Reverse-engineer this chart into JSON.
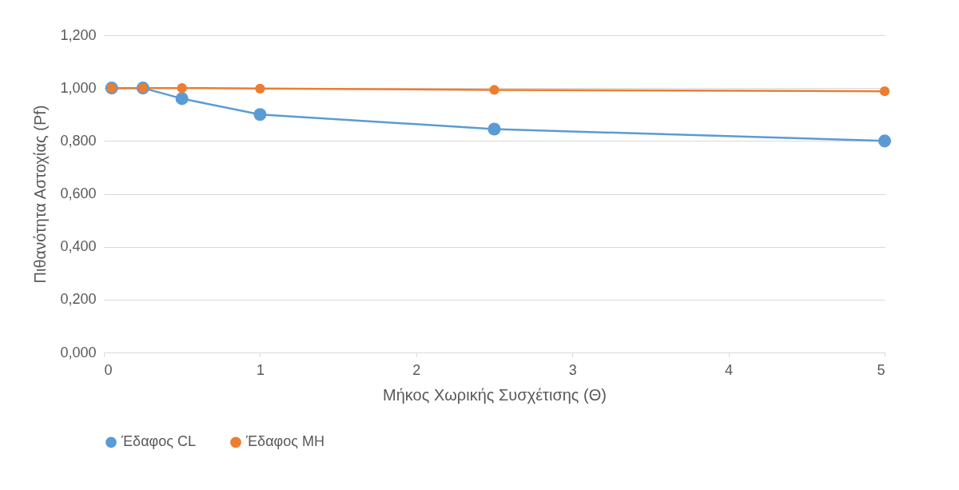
{
  "chart_data": {
    "type": "line",
    "xlabel": "Μήκος Χωρικής Συσχέτισης (Θ)",
    "ylabel": "Πιθανότητα Αστοχίας (Pf)",
    "x": [
      0.05,
      0.25,
      0.5,
      1,
      2.5,
      5
    ],
    "series": [
      {
        "name": "Έδαφος CL",
        "color": "#5b9bd5",
        "values": [
          1.0,
          1.0,
          0.96,
          0.9,
          0.845,
          0.8
        ]
      },
      {
        "name": "Έδαφος MH",
        "color": "#ed7d31",
        "values": [
          1.0,
          1.0,
          1.0,
          0.998,
          0.993,
          0.988
        ]
      }
    ],
    "xlim": [
      0,
      5
    ],
    "xticks": [
      0,
      1,
      2,
      3,
      4,
      5
    ],
    "ylim": [
      0,
      1.2
    ],
    "yticks": [
      {
        "value": 0,
        "label": "0,000"
      },
      {
        "value": 0.2,
        "label": "0,200"
      },
      {
        "value": 0.4,
        "label": "0,400"
      },
      {
        "value": 0.6,
        "label": "0,600"
      },
      {
        "value": 0.8,
        "label": "0,800"
      },
      {
        "value": 1,
        "label": "1,000"
      },
      {
        "value": 1.2,
        "label": "1,200"
      }
    ],
    "grid": "y",
    "legend": "bottom",
    "marker": "circle",
    "line_style": "solid"
  }
}
